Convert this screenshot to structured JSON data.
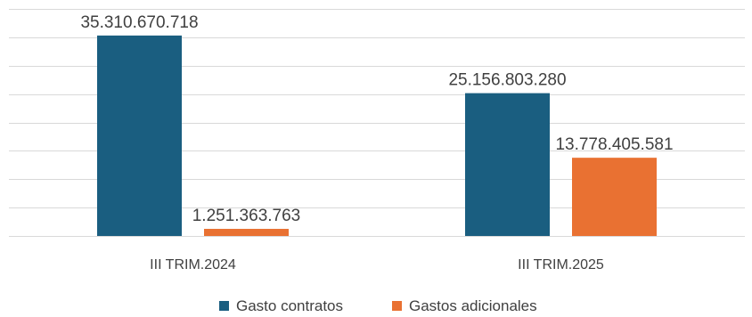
{
  "chart_data": {
    "type": "bar",
    "categories": [
      "III TRIM.2024",
      "III TRIM.2025"
    ],
    "series": [
      {
        "name": "Gasto contratos",
        "color": "#1a5e80",
        "values": [
          35310670718,
          25156803280
        ],
        "labels": [
          "35.310.670.718",
          "25.156.803.280"
        ]
      },
      {
        "name": "Gastos adicionales",
        "color": "#e97132",
        "values": [
          1251363763,
          13778405581
        ],
        "labels": [
          "1.251.363.763",
          "13.778.405.581"
        ]
      }
    ],
    "ylim": [
      0,
      40000000000
    ],
    "grid": true,
    "legend_position": "bottom"
  }
}
